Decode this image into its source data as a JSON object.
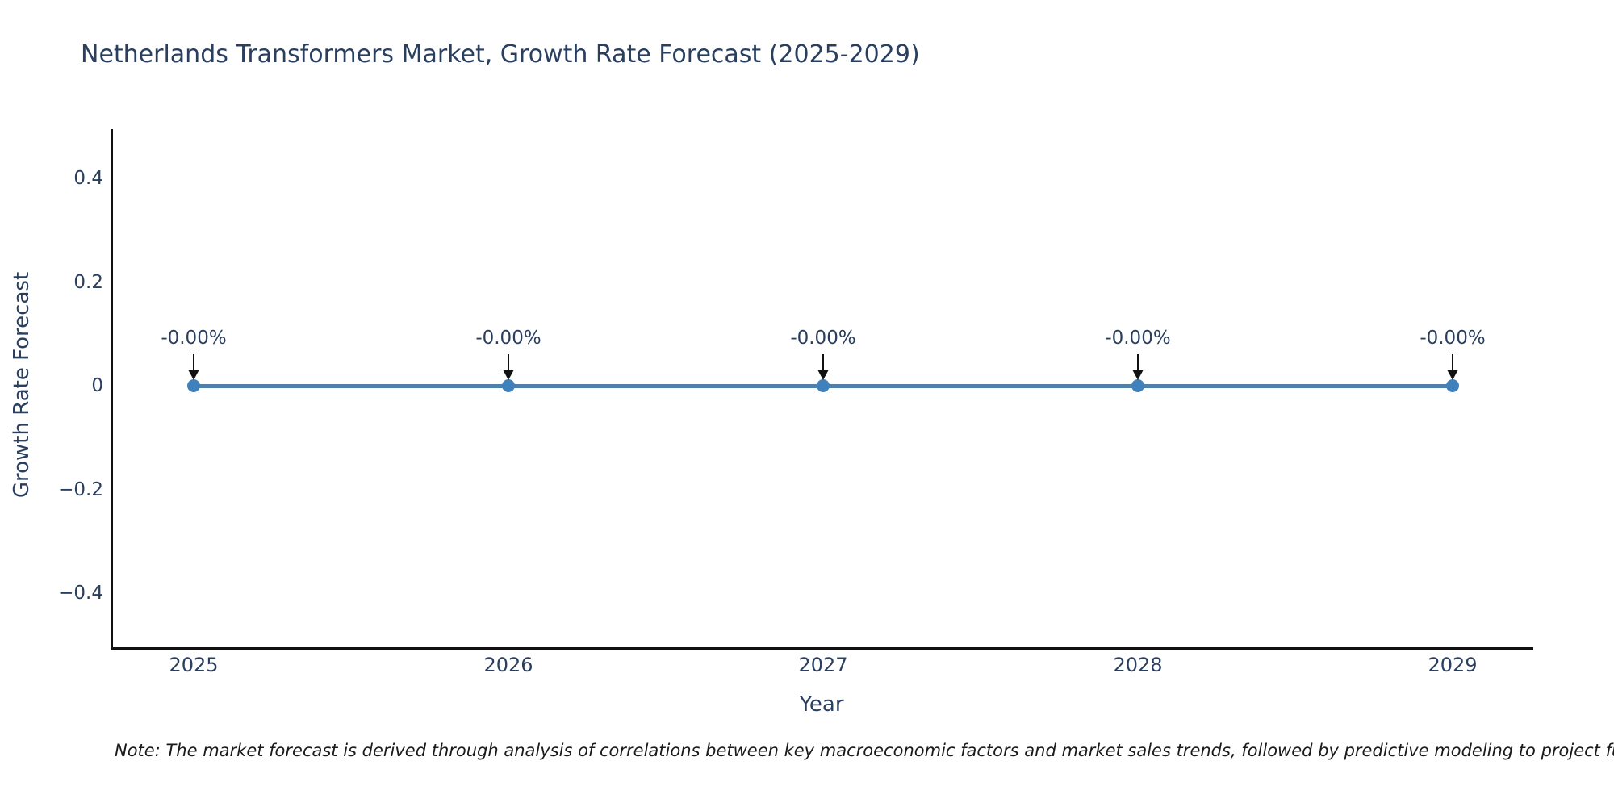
{
  "title": "Netherlands Transformers Market, Growth Rate Forecast (2025-2029)",
  "note": "Note: The market forecast is derived through analysis of correlations between key macroeconomic factors and market sales trends, followed by predictive modeling to project future sales",
  "chart_data": {
    "type": "line",
    "title": "Netherlands Transformers Market, Growth Rate Forecast (2025-2029)",
    "xlabel": "Year",
    "ylabel": "Growth Rate Forecast",
    "categories": [
      "2025",
      "2026",
      "2027",
      "2028",
      "2029"
    ],
    "x": [
      2025,
      2026,
      2027,
      2028,
      2029
    ],
    "values": [
      0,
      0,
      0,
      0,
      0
    ],
    "point_labels": [
      "-0.00%",
      "-0.00%",
      "-0.00%",
      "-0.00%",
      "-0.00%"
    ],
    "ytick_labels": [
      "0.4",
      "0.2",
      "0",
      "−0.2",
      "−0.4"
    ],
    "ytick_values": [
      0.4,
      0.2,
      0,
      -0.2,
      -0.4
    ],
    "ylim": [
      -0.5,
      0.5
    ],
    "grid": false,
    "legend": "none",
    "annotation_arrows": "down-to-point",
    "line_color": "#4e80aa",
    "marker_color": "#4181bb",
    "axis_color": "#111111",
    "text_color": "#2a3f5f"
  }
}
